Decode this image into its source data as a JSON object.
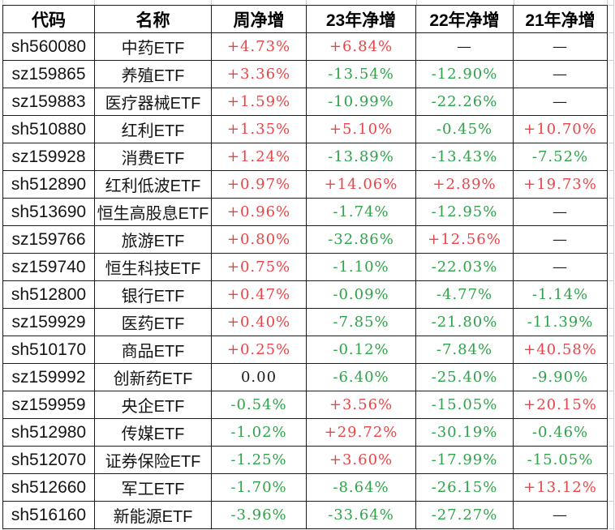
{
  "colors": {
    "up": "#e64649",
    "down": "#2fa24a",
    "flat": "#1c1c1c"
  },
  "table": {
    "columns": [
      {
        "key": "code",
        "label": "代码"
      },
      {
        "key": "name",
        "label": "名称"
      },
      {
        "key": "week",
        "label": "周净增"
      },
      {
        "key": "y23",
        "label": "23年净增"
      },
      {
        "key": "y22",
        "label": "22年净增"
      },
      {
        "key": "y21",
        "label": "21年净增"
      }
    ],
    "rows": [
      {
        "code": "sh560080",
        "name": "中药ETF",
        "week": {
          "text": "+4.73%",
          "trend": "up"
        },
        "y23": {
          "text": "+6.84%",
          "trend": "up"
        },
        "y22": {
          "text": "—",
          "trend": "flat"
        },
        "y21": {
          "text": "—",
          "trend": "flat"
        }
      },
      {
        "code": "sz159865",
        "name": "养殖ETF",
        "week": {
          "text": "+3.36%",
          "trend": "up"
        },
        "y23": {
          "text": "-13.54%",
          "trend": "down"
        },
        "y22": {
          "text": "-12.90%",
          "trend": "down"
        },
        "y21": {
          "text": "—",
          "trend": "flat"
        }
      },
      {
        "code": "sz159883",
        "name": "医疗器械ETF",
        "week": {
          "text": "+1.59%",
          "trend": "up"
        },
        "y23": {
          "text": "-10.99%",
          "trend": "down"
        },
        "y22": {
          "text": "-22.26%",
          "trend": "down"
        },
        "y21": {
          "text": "—",
          "trend": "flat"
        }
      },
      {
        "code": "sh510880",
        "name": "红利ETF",
        "week": {
          "text": "+1.35%",
          "trend": "up"
        },
        "y23": {
          "text": "+5.10%",
          "trend": "up"
        },
        "y22": {
          "text": "-0.45%",
          "trend": "down"
        },
        "y21": {
          "text": "+10.70%",
          "trend": "up"
        }
      },
      {
        "code": "sz159928",
        "name": "消费ETF",
        "week": {
          "text": "+1.24%",
          "trend": "up"
        },
        "y23": {
          "text": "-13.89%",
          "trend": "down"
        },
        "y22": {
          "text": "-13.43%",
          "trend": "down"
        },
        "y21": {
          "text": "-7.52%",
          "trend": "down"
        }
      },
      {
        "code": "sh512890",
        "name": "红利低波ETF",
        "week": {
          "text": "+0.97%",
          "trend": "up"
        },
        "y23": {
          "text": "+14.06%",
          "trend": "up"
        },
        "y22": {
          "text": "+2.89%",
          "trend": "up"
        },
        "y21": {
          "text": "+19.73%",
          "trend": "up"
        }
      },
      {
        "code": "sh513690",
        "name": "恒生高股息ETF",
        "week": {
          "text": "+0.96%",
          "trend": "up"
        },
        "y23": {
          "text": "-1.74%",
          "trend": "down"
        },
        "y22": {
          "text": "-12.95%",
          "trend": "down"
        },
        "y21": {
          "text": "—",
          "trend": "flat"
        }
      },
      {
        "code": "sz159766",
        "name": "旅游ETF",
        "week": {
          "text": "+0.80%",
          "trend": "up"
        },
        "y23": {
          "text": "-32.86%",
          "trend": "down"
        },
        "y22": {
          "text": "+12.56%",
          "trend": "up"
        },
        "y21": {
          "text": "—",
          "trend": "flat"
        }
      },
      {
        "code": "sz159740",
        "name": "恒生科技ETF",
        "week": {
          "text": "+0.75%",
          "trend": "up"
        },
        "y23": {
          "text": "-1.10%",
          "trend": "down"
        },
        "y22": {
          "text": "-22.03%",
          "trend": "down"
        },
        "y21": {
          "text": "—",
          "trend": "flat"
        }
      },
      {
        "code": "sh512800",
        "name": "银行ETF",
        "week": {
          "text": "+0.47%",
          "trend": "up"
        },
        "y23": {
          "text": "-0.09%",
          "trend": "down"
        },
        "y22": {
          "text": "-4.77%",
          "trend": "down"
        },
        "y21": {
          "text": "-1.14%",
          "trend": "down"
        }
      },
      {
        "code": "sz159929",
        "name": "医药ETF",
        "week": {
          "text": "+0.40%",
          "trend": "up"
        },
        "y23": {
          "text": "-7.85%",
          "trend": "down"
        },
        "y22": {
          "text": "-21.80%",
          "trend": "down"
        },
        "y21": {
          "text": "-11.39%",
          "trend": "down"
        }
      },
      {
        "code": "sh510170",
        "name": "商品ETF",
        "week": {
          "text": "+0.25%",
          "trend": "up"
        },
        "y23": {
          "text": "-0.12%",
          "trend": "down"
        },
        "y22": {
          "text": "-7.84%",
          "trend": "down"
        },
        "y21": {
          "text": "+40.58%",
          "trend": "up"
        }
      },
      {
        "code": "sz159992",
        "name": "创新药ETF",
        "week": {
          "text": "0.00",
          "trend": "flat"
        },
        "y23": {
          "text": "-6.40%",
          "trend": "down"
        },
        "y22": {
          "text": "-25.40%",
          "trend": "down"
        },
        "y21": {
          "text": "-9.90%",
          "trend": "down"
        }
      },
      {
        "code": "sz159959",
        "name": "央企ETF",
        "week": {
          "text": "-0.54%",
          "trend": "down"
        },
        "y23": {
          "text": "+3.56%",
          "trend": "up"
        },
        "y22": {
          "text": "-15.05%",
          "trend": "down"
        },
        "y21": {
          "text": "+20.15%",
          "trend": "up"
        }
      },
      {
        "code": "sh512980",
        "name": "传媒ETF",
        "week": {
          "text": "-1.02%",
          "trend": "down"
        },
        "y23": {
          "text": "+29.72%",
          "trend": "up"
        },
        "y22": {
          "text": "-30.19%",
          "trend": "down"
        },
        "y21": {
          "text": "-0.46%",
          "trend": "down"
        }
      },
      {
        "code": "sh512070",
        "name": "证券保险ETF",
        "week": {
          "text": "-1.25%",
          "trend": "down"
        },
        "y23": {
          "text": "+3.60%",
          "trend": "up"
        },
        "y22": {
          "text": "-17.99%",
          "trend": "down"
        },
        "y21": {
          "text": "-15.05%",
          "trend": "down"
        }
      },
      {
        "code": "sh512660",
        "name": "军工ETF",
        "week": {
          "text": "-1.70%",
          "trend": "down"
        },
        "y23": {
          "text": "-8.64%",
          "trend": "down"
        },
        "y22": {
          "text": "-26.15%",
          "trend": "down"
        },
        "y21": {
          "text": "+13.12%",
          "trend": "up"
        }
      },
      {
        "code": "sh516160",
        "name": "新能源ETF",
        "week": {
          "text": "-3.96%",
          "trend": "down"
        },
        "y23": {
          "text": "-33.64%",
          "trend": "down"
        },
        "y22": {
          "text": "-27.27%",
          "trend": "down"
        },
        "y21": {
          "text": "—",
          "trend": "flat"
        }
      }
    ]
  }
}
